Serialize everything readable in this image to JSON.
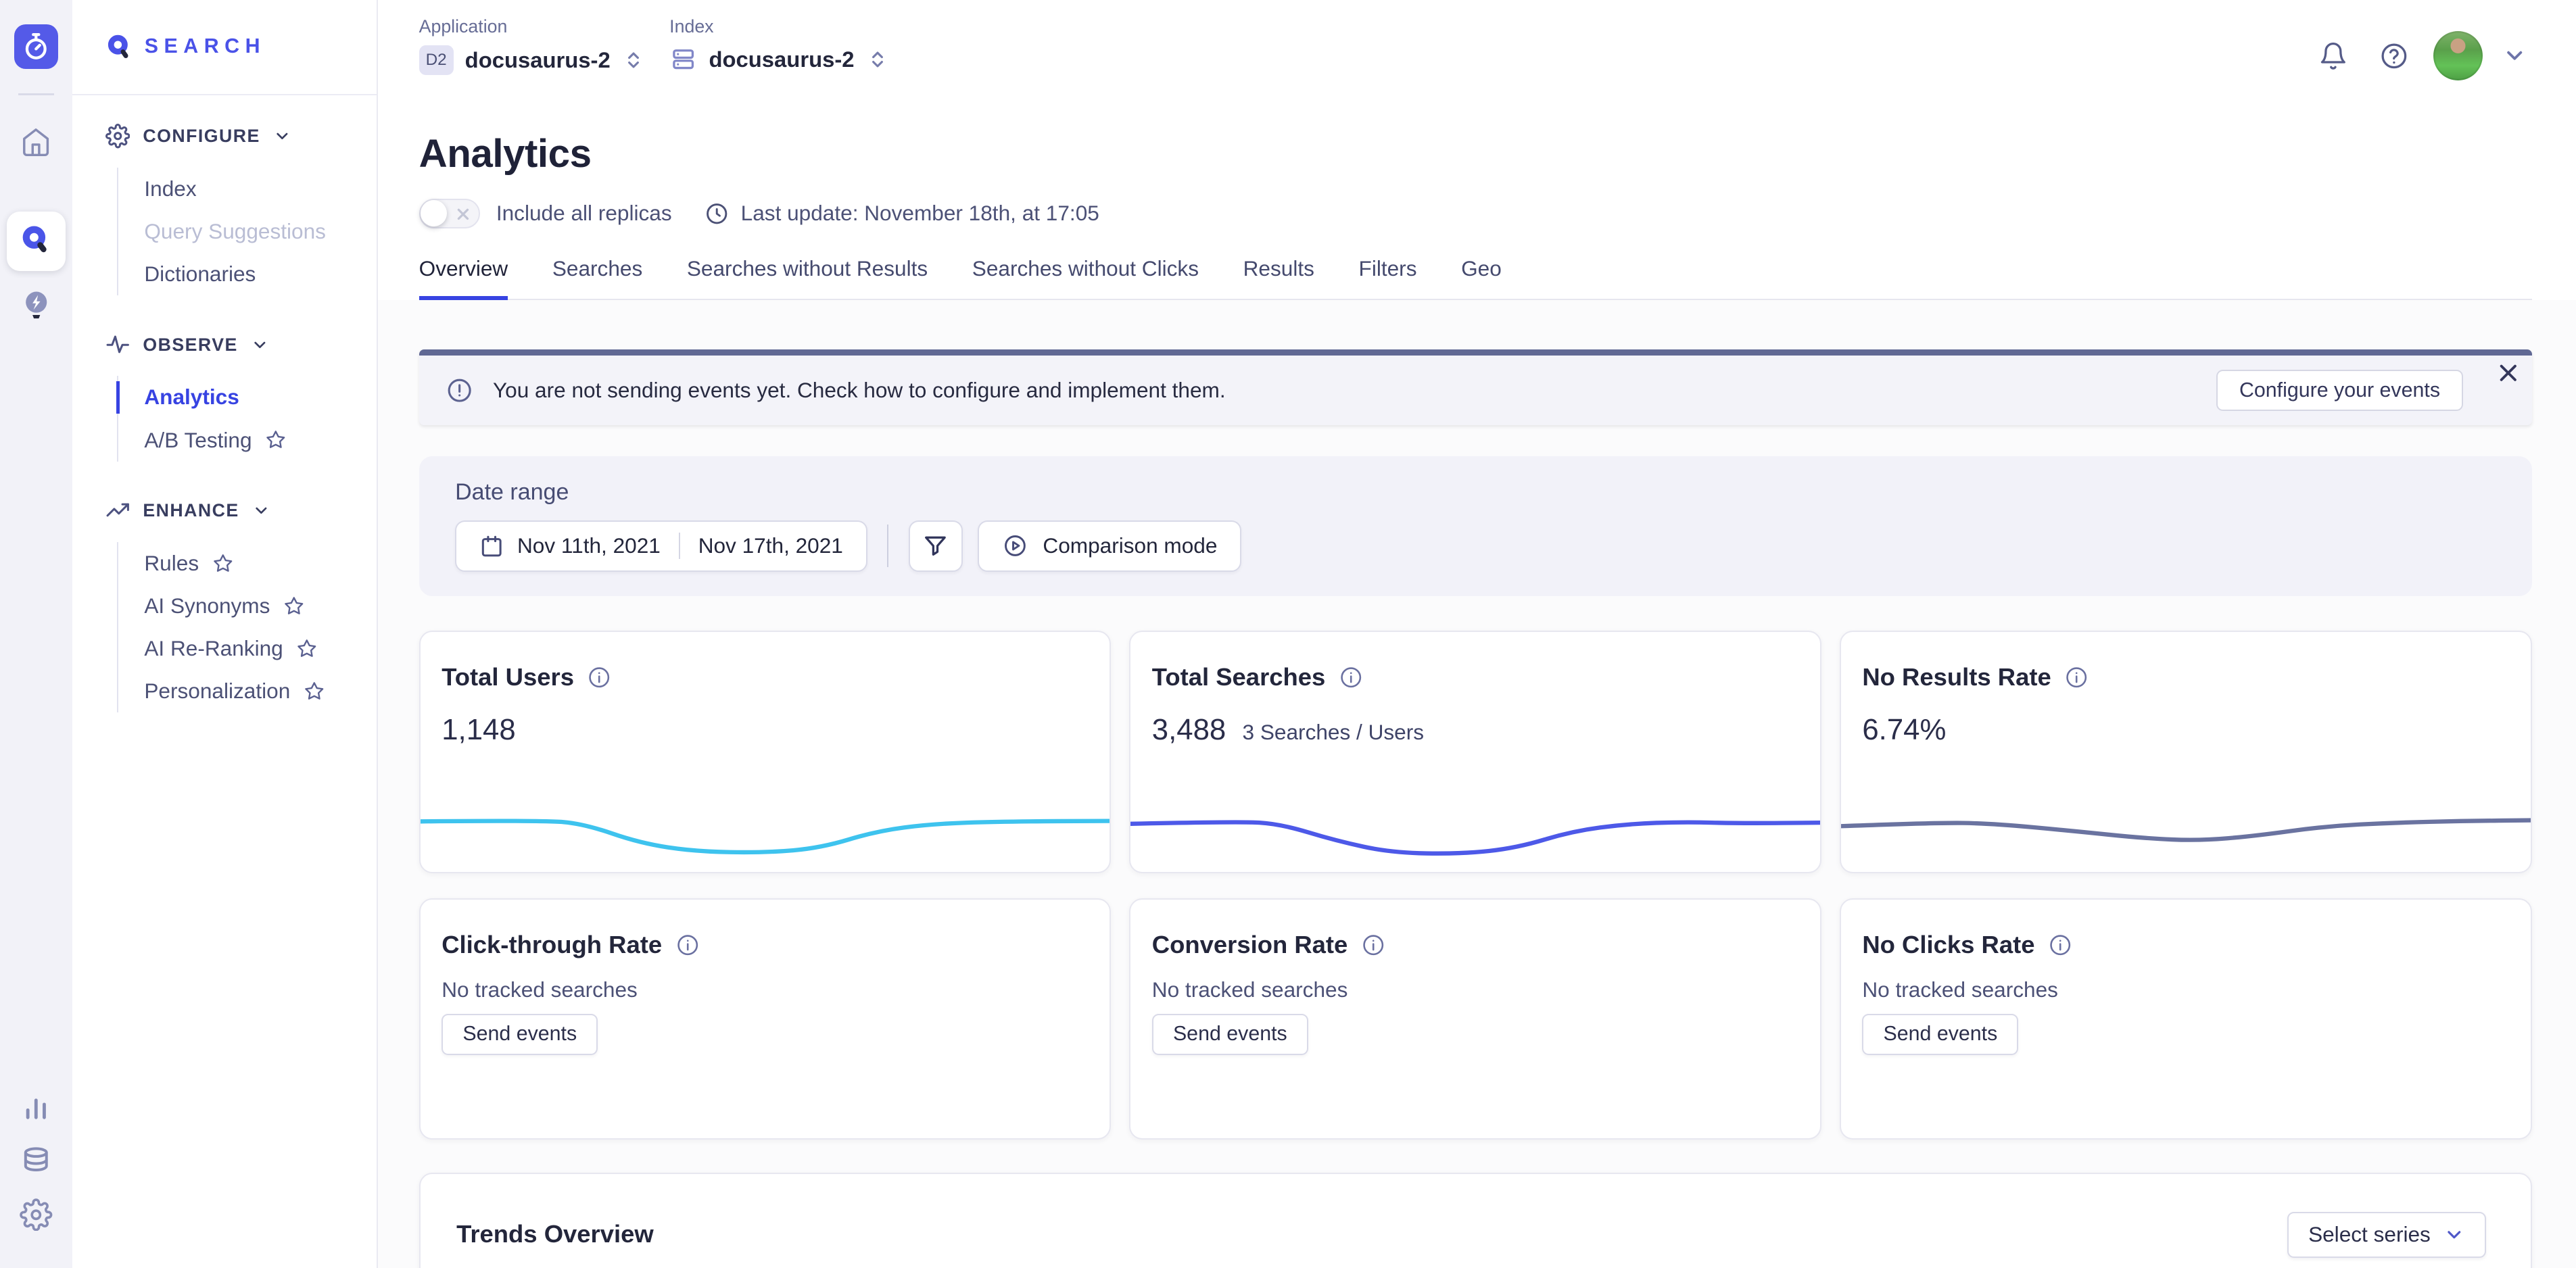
{
  "brand": {
    "product": "SEARCH",
    "logo_icon": "magnifier-icon",
    "workspace_icon": "stopwatch-icon"
  },
  "rail": {
    "items": [
      {
        "icon": "home-icon"
      },
      {
        "icon": "search-icon",
        "active": true
      },
      {
        "icon": "lightbulb-bolt-icon"
      },
      {
        "icon": "bar-chart-icon"
      },
      {
        "icon": "database-icon"
      },
      {
        "icon": "gear-icon"
      }
    ]
  },
  "sidebar": {
    "sections": [
      {
        "label": "CONFIGURE",
        "icon": "gear-icon",
        "items": [
          {
            "label": "Index"
          },
          {
            "label": "Query Suggestions",
            "muted": true
          },
          {
            "label": "Dictionaries"
          }
        ]
      },
      {
        "label": "OBSERVE",
        "icon": "activity-icon",
        "items": [
          {
            "label": "Analytics",
            "active": true
          },
          {
            "label": "A/B Testing",
            "starred": true
          }
        ]
      },
      {
        "label": "ENHANCE",
        "icon": "trending-up-icon",
        "items": [
          {
            "label": "Rules",
            "starred": true
          },
          {
            "label": "AI Synonyms",
            "starred": true
          },
          {
            "label": "AI Re-Ranking",
            "starred": true
          },
          {
            "label": "Personalization",
            "starred": true
          }
        ]
      }
    ]
  },
  "topbar": {
    "application_label": "Application",
    "application_badge": "D2",
    "application_value": "docusaurus-2",
    "index_label": "Index",
    "index_icon": "index-stack-icon",
    "index_value": "docusaurus-2",
    "right_icons": [
      "bell-icon",
      "help-icon",
      "avatar",
      "chevron-down-icon"
    ]
  },
  "header": {
    "title": "Analytics",
    "toggle_label": "Include all replicas",
    "toggle_state": "off",
    "last_update": "Last update: November 18th, at 17:05",
    "tabs": [
      "Overview",
      "Searches",
      "Searches without Results",
      "Searches without Clicks",
      "Results",
      "Filters",
      "Geo"
    ],
    "active_tab": "Overview"
  },
  "banner": {
    "message": "You are not sending events yet. Check how to configure and implement them.",
    "button": "Configure your events",
    "accent_color": "#606894"
  },
  "filters": {
    "label": "Date range",
    "date_start": "Nov 11th, 2021",
    "date_end": "Nov 17th, 2021",
    "comparison": "Comparison mode"
  },
  "cards": [
    {
      "title": "Total Users",
      "value": "1,148"
    },
    {
      "title": "Total Searches",
      "value": "3,488",
      "sub": "3 Searches / Users"
    },
    {
      "title": "No Results Rate",
      "value": "6.74%"
    },
    {
      "title": "Click-through Rate",
      "empty": "No tracked searches",
      "button": "Send events"
    },
    {
      "title": "Conversion Rate",
      "empty": "No tracked searches",
      "button": "Send events"
    },
    {
      "title": "No Clicks Rate",
      "empty": "No tracked searches",
      "button": "Send events"
    }
  ],
  "trends": {
    "title": "Trends Overview",
    "select_series": "Select series"
  },
  "chart_data": [
    {
      "type": "line",
      "metric": "Total Users",
      "current_value": 1148,
      "color": "#3ec3ee",
      "points_normalized": true,
      "points": [
        [
          0,
          13
        ],
        [
          18,
          12.5
        ],
        [
          24,
          14
        ],
        [
          32,
          22
        ],
        [
          40,
          25.5
        ],
        [
          50,
          26
        ],
        [
          58,
          24
        ],
        [
          66,
          17
        ],
        [
          74,
          14
        ],
        [
          84,
          13
        ],
        [
          100,
          12.8
        ]
      ]
    },
    {
      "type": "line",
      "metric": "Total Searches",
      "current_value": 3488,
      "color": "#4d59e8",
      "points_normalized": true,
      "points": [
        [
          0,
          14
        ],
        [
          16,
          13
        ],
        [
          22,
          14
        ],
        [
          30,
          21
        ],
        [
          38,
          26
        ],
        [
          48,
          26.5
        ],
        [
          56,
          24
        ],
        [
          64,
          17
        ],
        [
          72,
          14
        ],
        [
          80,
          13.2
        ],
        [
          88,
          13.8
        ],
        [
          100,
          13.5
        ]
      ]
    },
    {
      "type": "line",
      "metric": "No Results Rate",
      "current_value": "6.74%",
      "color": "#6a73a0",
      "points_normalized": true,
      "points": [
        [
          0,
          15
        ],
        [
          14,
          13.5
        ],
        [
          22,
          13.8
        ],
        [
          34,
          17
        ],
        [
          44,
          20
        ],
        [
          52,
          21
        ],
        [
          60,
          19
        ],
        [
          70,
          15
        ],
        [
          80,
          13.5
        ],
        [
          90,
          12.8
        ],
        [
          100,
          12.5
        ]
      ]
    }
  ]
}
